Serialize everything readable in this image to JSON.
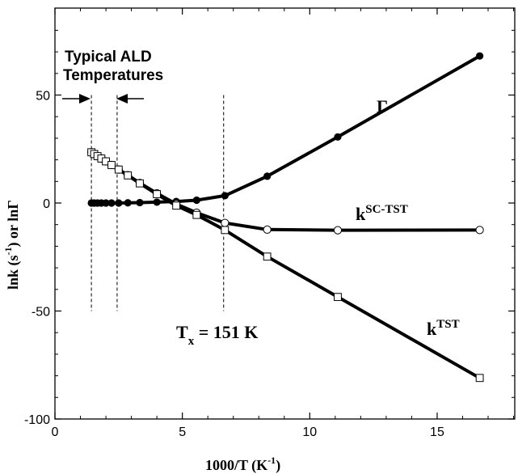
{
  "chart_data": {
    "type": "line",
    "xlabel_main": "1000/T (K",
    "xlabel_sup": "-1",
    "xlabel_end": ")",
    "ylabel_main": "lnk (s",
    "ylabel_sup": "-1",
    "ylabel_mid": ") or ln",
    "ylabel_gamma": "Γ",
    "xlim": [
      0,
      18
    ],
    "ylim": [
      -100,
      90
    ],
    "x_ticks": [
      0,
      5,
      10,
      15
    ],
    "x_tick_labels": [
      "0",
      "5",
      "10",
      "15"
    ],
    "y_ticks": [
      -100,
      -50,
      0,
      50
    ],
    "y_tick_labels": [
      "-100",
      "-50",
      "0",
      "50"
    ],
    "grid": false,
    "series": [
      {
        "name": "Γ",
        "marker": "filled-circle",
        "x": [
          1.43,
          1.54,
          1.67,
          1.82,
          2.0,
          2.22,
          2.5,
          2.86,
          3.33,
          4.0,
          4.76,
          5.56,
          6.67,
          8.33,
          11.1,
          16.67
        ],
        "y": [
          0.0,
          0.0,
          0.0,
          0.0,
          0.0,
          0.0,
          0.0,
          0.1,
          0.2,
          0.4,
          0.7,
          1.3,
          3.4,
          12.4,
          30.6,
          68.1
        ]
      },
      {
        "name": "k^SC-TST",
        "marker": "open-circle",
        "x": [
          1.43,
          1.54,
          1.67,
          1.82,
          2.0,
          2.22,
          2.5,
          2.86,
          3.33,
          4.0,
          4.76,
          5.56,
          6.67,
          8.33,
          11.1,
          16.67
        ],
        "y": [
          23.5,
          22.7,
          21.7,
          20.6,
          19.3,
          17.6,
          15.5,
          12.9,
          9.3,
          4.5,
          -0.5,
          -4.5,
          -9.2,
          -12.3,
          -12.6,
          -12.5
        ]
      },
      {
        "name": "k^TST",
        "marker": "open-square",
        "x": [
          1.43,
          1.54,
          1.67,
          1.82,
          2.0,
          2.22,
          2.5,
          2.86,
          3.33,
          4.0,
          4.76,
          5.56,
          6.67,
          8.33,
          11.1,
          16.67
        ],
        "y": [
          23.5,
          22.7,
          21.7,
          20.6,
          19.3,
          17.6,
          15.5,
          12.8,
          9.1,
          4.1,
          -1.2,
          -5.5,
          -12.5,
          -24.8,
          -43.5,
          -81.0
        ]
      }
    ],
    "vlines": [
      1.43,
      2.44,
      6.62
    ],
    "vline_ymin": -50,
    "vline_ymax": 50,
    "labels": {
      "gamma": "Γ",
      "ksc_main": "k",
      "ksc_sup": "SC-TST",
      "ktst_main": "k",
      "ktst_sup": "TST",
      "tx_main": "T",
      "tx_sub": "x",
      "tx_rest": " = 151 K",
      "ald_line1": "Typical ALD",
      "ald_line2": "Temperatures"
    }
  }
}
